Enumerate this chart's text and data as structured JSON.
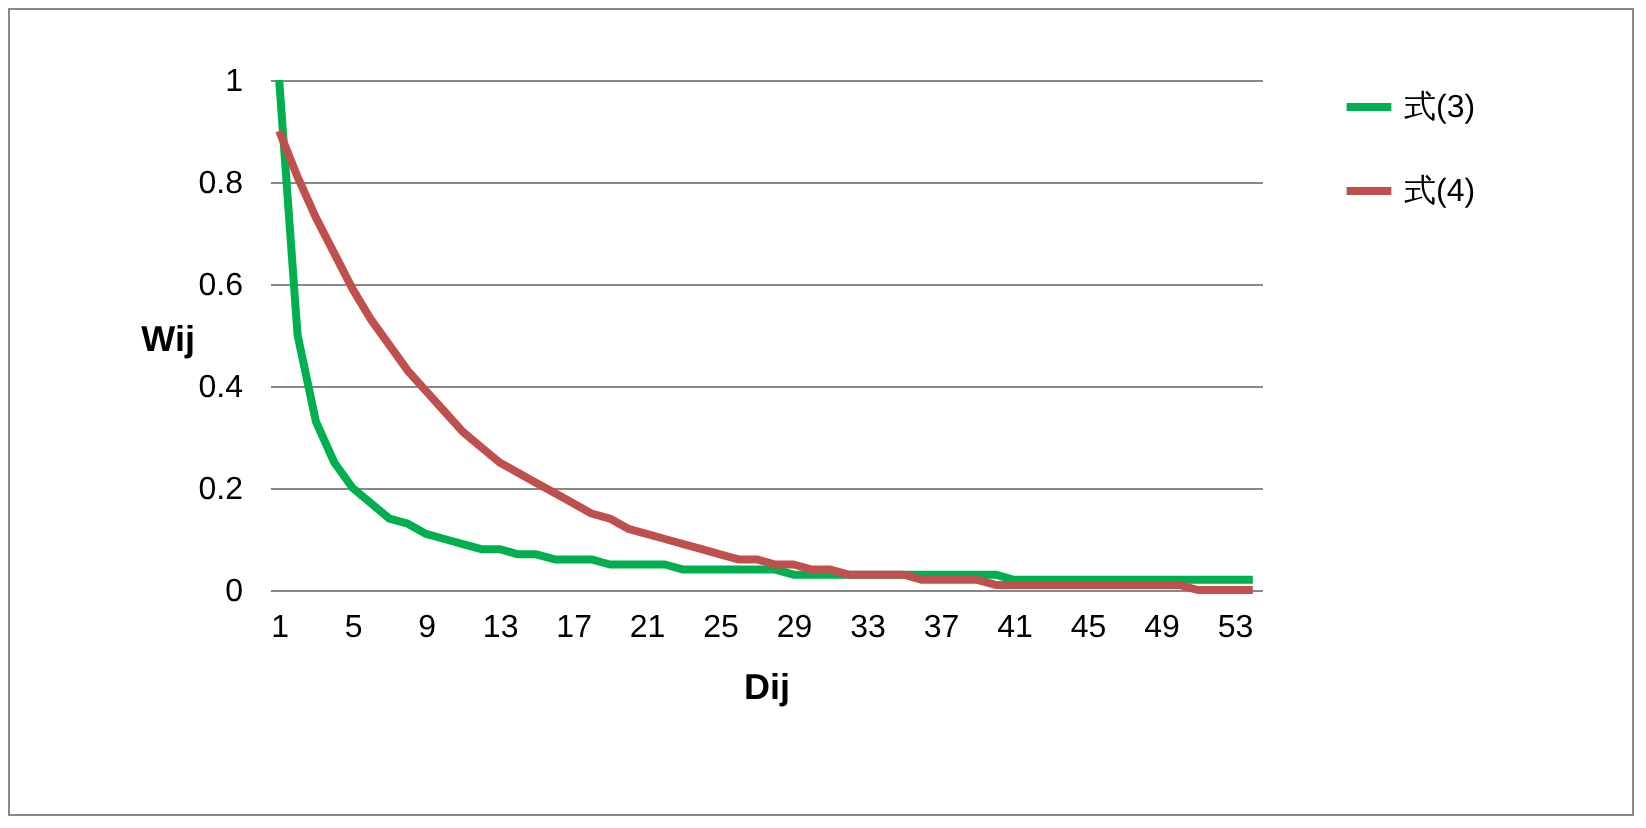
{
  "chart_data": {
    "type": "line",
    "xlabel": "Dij",
    "ylabel": "Wij",
    "categories": [
      "1",
      null,
      null,
      null,
      "5",
      null,
      null,
      null,
      "9",
      null,
      null,
      null,
      "13",
      null,
      null,
      null,
      "17",
      null,
      null,
      null,
      "21",
      null,
      null,
      null,
      "25",
      null,
      null,
      null,
      "29",
      null,
      null,
      null,
      "33",
      null,
      null,
      null,
      "37",
      null,
      null,
      null,
      "41",
      null,
      null,
      null,
      "45",
      null,
      null,
      null,
      "49",
      null,
      null,
      null,
      "53",
      null
    ],
    "series": [
      {
        "name": "式(3)",
        "color": "#00b050",
        "values": [
          1,
          0.5,
          0.33,
          0.25,
          0.2,
          0.17,
          0.14,
          0.13,
          0.11,
          0.1,
          0.09,
          0.08,
          0.08,
          0.07,
          0.07,
          0.06,
          0.06,
          0.06,
          0.05,
          0.05,
          0.05,
          0.05,
          0.04,
          0.04,
          0.04,
          0.04,
          0.04,
          0.04,
          0.03,
          0.03,
          0.03,
          0.03,
          0.03,
          0.03,
          0.03,
          0.03,
          0.03,
          0.03,
          0.03,
          0.03,
          0.02,
          0.02,
          0.02,
          0.02,
          0.02,
          0.02,
          0.02,
          0.02,
          0.02,
          0.02,
          0.02,
          0.02,
          0.02,
          0.02
        ]
      },
      {
        "name": "式(4)",
        "color": "#c0504d",
        "values": [
          0.9,
          0.81,
          0.73,
          0.66,
          0.59,
          0.53,
          0.48,
          0.43,
          0.39,
          0.35,
          0.31,
          0.28,
          0.25,
          0.23,
          0.21,
          0.19,
          0.17,
          0.15,
          0.14,
          0.12,
          0.11,
          0.1,
          0.09,
          0.08,
          0.07,
          0.06,
          0.06,
          0.05,
          0.05,
          0.04,
          0.04,
          0.03,
          0.03,
          0.03,
          0.03,
          0.02,
          0.02,
          0.02,
          0.02,
          0.01,
          0.01,
          0.01,
          0.01,
          0.01,
          0.01,
          0.01,
          0.01,
          0.01,
          0.01,
          0.01,
          0,
          0,
          0,
          0
        ]
      }
    ],
    "ylim": [
      0,
      1
    ],
    "yticks": [
      0,
      0.2,
      0.4,
      0.6,
      0.8,
      1
    ],
    "grid": "y",
    "legend": "right",
    "marker": "none",
    "line_style": "solid"
  }
}
